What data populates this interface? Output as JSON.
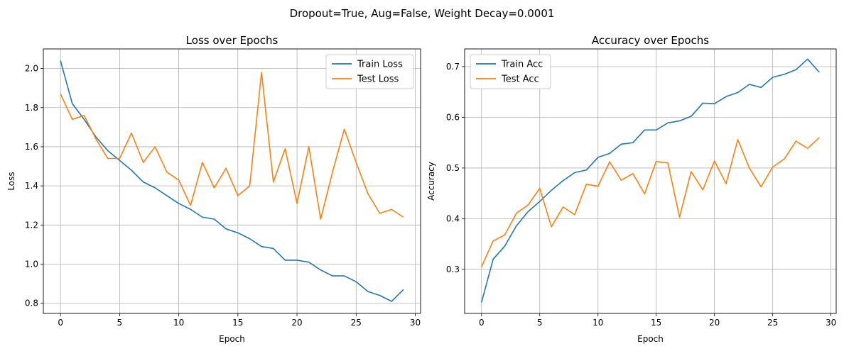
{
  "suptitle": "Dropout=True, Aug=False, Weight Decay=0.0001",
  "colors": {
    "train": "#1f77b4",
    "test": "#ff7f0e",
    "grid": "#b0b0b0",
    "axis": "#000000"
  },
  "chart_data": [
    {
      "type": "line",
      "title": "Loss over Epochs",
      "xlabel": "Epoch",
      "ylabel": "Loss",
      "xlim": [
        -1.45,
        30.45
      ],
      "ylim": [
        0.748,
        2.1
      ],
      "xticks": [
        0,
        5,
        10,
        15,
        20,
        25,
        30
      ],
      "yticks": [
        0.8,
        1.0,
        1.2,
        1.4,
        1.6,
        1.8,
        2.0
      ],
      "ytick_labels": [
        "0.8",
        "1.0",
        "1.2",
        "1.4",
        "1.6",
        "1.8",
        "2.0"
      ],
      "grid": true,
      "legend": "top-right",
      "x": [
        0,
        1,
        2,
        3,
        4,
        5,
        6,
        7,
        8,
        9,
        10,
        11,
        12,
        13,
        14,
        15,
        16,
        17,
        18,
        19,
        20,
        21,
        22,
        23,
        24,
        25,
        26,
        27,
        28,
        29
      ],
      "series": [
        {
          "name": "Train Loss",
          "color": "#1f77b4",
          "values": [
            2.04,
            1.82,
            1.74,
            1.65,
            1.58,
            1.53,
            1.48,
            1.42,
            1.39,
            1.35,
            1.31,
            1.28,
            1.24,
            1.23,
            1.18,
            1.16,
            1.13,
            1.09,
            1.08,
            1.02,
            1.02,
            1.01,
            0.97,
            0.94,
            0.94,
            0.91,
            0.86,
            0.84,
            0.81,
            0.87
          ]
        },
        {
          "name": "Test Loss",
          "color": "#ff7f0e",
          "values": [
            1.87,
            1.74,
            1.76,
            1.64,
            1.54,
            1.54,
            1.67,
            1.52,
            1.6,
            1.47,
            1.43,
            1.3,
            1.52,
            1.39,
            1.49,
            1.35,
            1.4,
            1.98,
            1.42,
            1.59,
            1.31,
            1.6,
            1.23,
            1.47,
            1.69,
            1.52,
            1.36,
            1.26,
            1.28,
            1.24
          ]
        }
      ]
    },
    {
      "type": "line",
      "title": "Accuracy over Epochs",
      "xlabel": "Epoch",
      "ylabel": "Accuracy",
      "xlim": [
        -1.45,
        30.45
      ],
      "ylim": [
        0.213,
        0.735
      ],
      "xticks": [
        0,
        5,
        10,
        15,
        20,
        25,
        30
      ],
      "yticks": [
        0.3,
        0.4,
        0.5,
        0.6,
        0.7
      ],
      "ytick_labels": [
        "0.3",
        "0.4",
        "0.5",
        "0.6",
        "0.7"
      ],
      "grid": true,
      "legend": "top-left",
      "x": [
        0,
        1,
        2,
        3,
        4,
        5,
        6,
        7,
        8,
        9,
        10,
        11,
        12,
        13,
        14,
        15,
        16,
        17,
        18,
        19,
        20,
        21,
        22,
        23,
        24,
        25,
        26,
        27,
        28,
        29
      ],
      "series": [
        {
          "name": "Train Acc",
          "color": "#1f77b4",
          "values": [
            0.235,
            0.32,
            0.346,
            0.386,
            0.414,
            0.434,
            0.456,
            0.475,
            0.491,
            0.496,
            0.521,
            0.529,
            0.547,
            0.55,
            0.575,
            0.575,
            0.589,
            0.593,
            0.602,
            0.628,
            0.627,
            0.641,
            0.649,
            0.665,
            0.659,
            0.679,
            0.685,
            0.694,
            0.715,
            0.689
          ]
        },
        {
          "name": "Test Acc",
          "color": "#ff7f0e",
          "values": [
            0.305,
            0.356,
            0.368,
            0.411,
            0.427,
            0.46,
            0.384,
            0.423,
            0.408,
            0.468,
            0.464,
            0.512,
            0.476,
            0.489,
            0.449,
            0.513,
            0.51,
            0.403,
            0.493,
            0.457,
            0.514,
            0.469,
            0.556,
            0.5,
            0.463,
            0.502,
            0.518,
            0.553,
            0.539,
            0.56
          ]
        }
      ]
    }
  ]
}
